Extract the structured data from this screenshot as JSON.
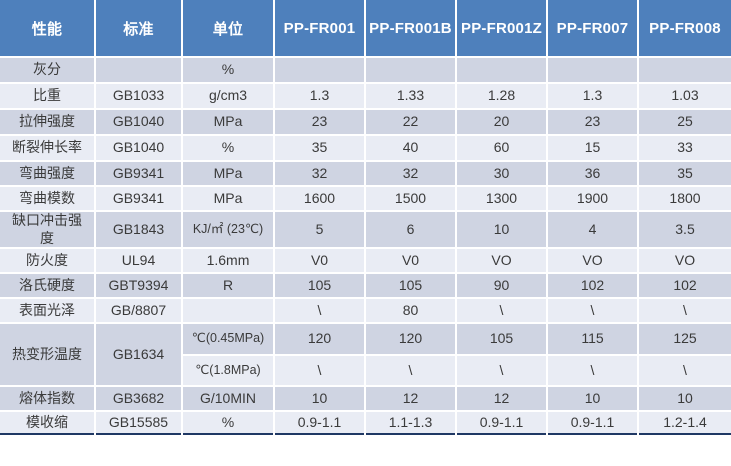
{
  "table": {
    "header": [
      "性能",
      "标准",
      "单位",
      "PP-FR001",
      "PP-FR001B",
      "PP-FR001Z",
      "PP-FR007",
      "PP-FR008"
    ],
    "rows": [
      {
        "property": "灰分",
        "standard": "",
        "unit": "%",
        "values": [
          "",
          "",
          "",
          "",
          ""
        ]
      },
      {
        "property": "比重",
        "standard": "GB1033",
        "unit": "g/cm3",
        "values": [
          "1.3",
          "1.33",
          "1.28",
          "1.3",
          "1.03"
        ]
      },
      {
        "property": "拉伸强度",
        "standard": "GB1040",
        "unit": "MPa",
        "values": [
          "23",
          "22",
          "20",
          "23",
          "25"
        ]
      },
      {
        "property": "断裂伸长率",
        "standard": "GB1040",
        "unit": "%",
        "values": [
          "35",
          "40",
          "60",
          "15",
          "33"
        ]
      },
      {
        "property": "弯曲强度",
        "standard": "GB9341",
        "unit": "MPa",
        "values": [
          "32",
          "32",
          "30",
          "36",
          "35"
        ]
      },
      {
        "property": "弯曲模数",
        "standard": "GB9341",
        "unit": "MPa",
        "values": [
          "1600",
          "1500",
          "1300",
          "1900",
          "1800"
        ]
      },
      {
        "property": "缺口冲击强度",
        "standard": "GB1843",
        "unit": "KJ/㎡ (23℃)",
        "values": [
          "5",
          "6",
          "10",
          "4",
          "3.5"
        ]
      },
      {
        "property": "防火度",
        "standard": "UL94",
        "unit": "1.6mm",
        "values": [
          "V0",
          "V0",
          "VO",
          "VO",
          "VO"
        ]
      },
      {
        "property": "洛氏硬度",
        "standard": "GBT9394",
        "unit": "R",
        "values": [
          "105",
          "105",
          "90",
          "102",
          "102"
        ]
      },
      {
        "property": "表面光泽",
        "standard": "GB/8807",
        "unit": "",
        "values": [
          "\\",
          "80",
          "\\",
          "\\",
          "\\"
        ]
      },
      {
        "property": "热变形温度",
        "standard": "GB1634",
        "rowspan": 2,
        "unit": "℃(0.45MPa)",
        "values": [
          "120",
          "120",
          "105",
          "115",
          "125"
        ]
      },
      {
        "merged": true,
        "unit": "℃(1.8MPa)",
        "values": [
          "\\",
          "\\",
          "\\",
          "\\",
          "\\"
        ]
      },
      {
        "property": "熔体指数",
        "standard": "GB3682",
        "unit": "G/10MIN",
        "values": [
          "10",
          "12",
          "12",
          "10",
          "10"
        ]
      },
      {
        "property": "模收缩",
        "standard": "GB15585",
        "unit": "%",
        "values": [
          "0.9-1.1",
          "1.1-1.3",
          "0.9-1.1",
          "0.9-1.1",
          "1.2-1.4"
        ]
      }
    ]
  },
  "colors": {
    "header_bg": "#4E80BC",
    "header_text": "#FFFFFF",
    "band_dark": "#CFD4E2",
    "band_light": "#E9ECF4",
    "body_text": "#3A3A3A",
    "separator": "#FFFFFF",
    "bottom_border": "#1F3864"
  }
}
